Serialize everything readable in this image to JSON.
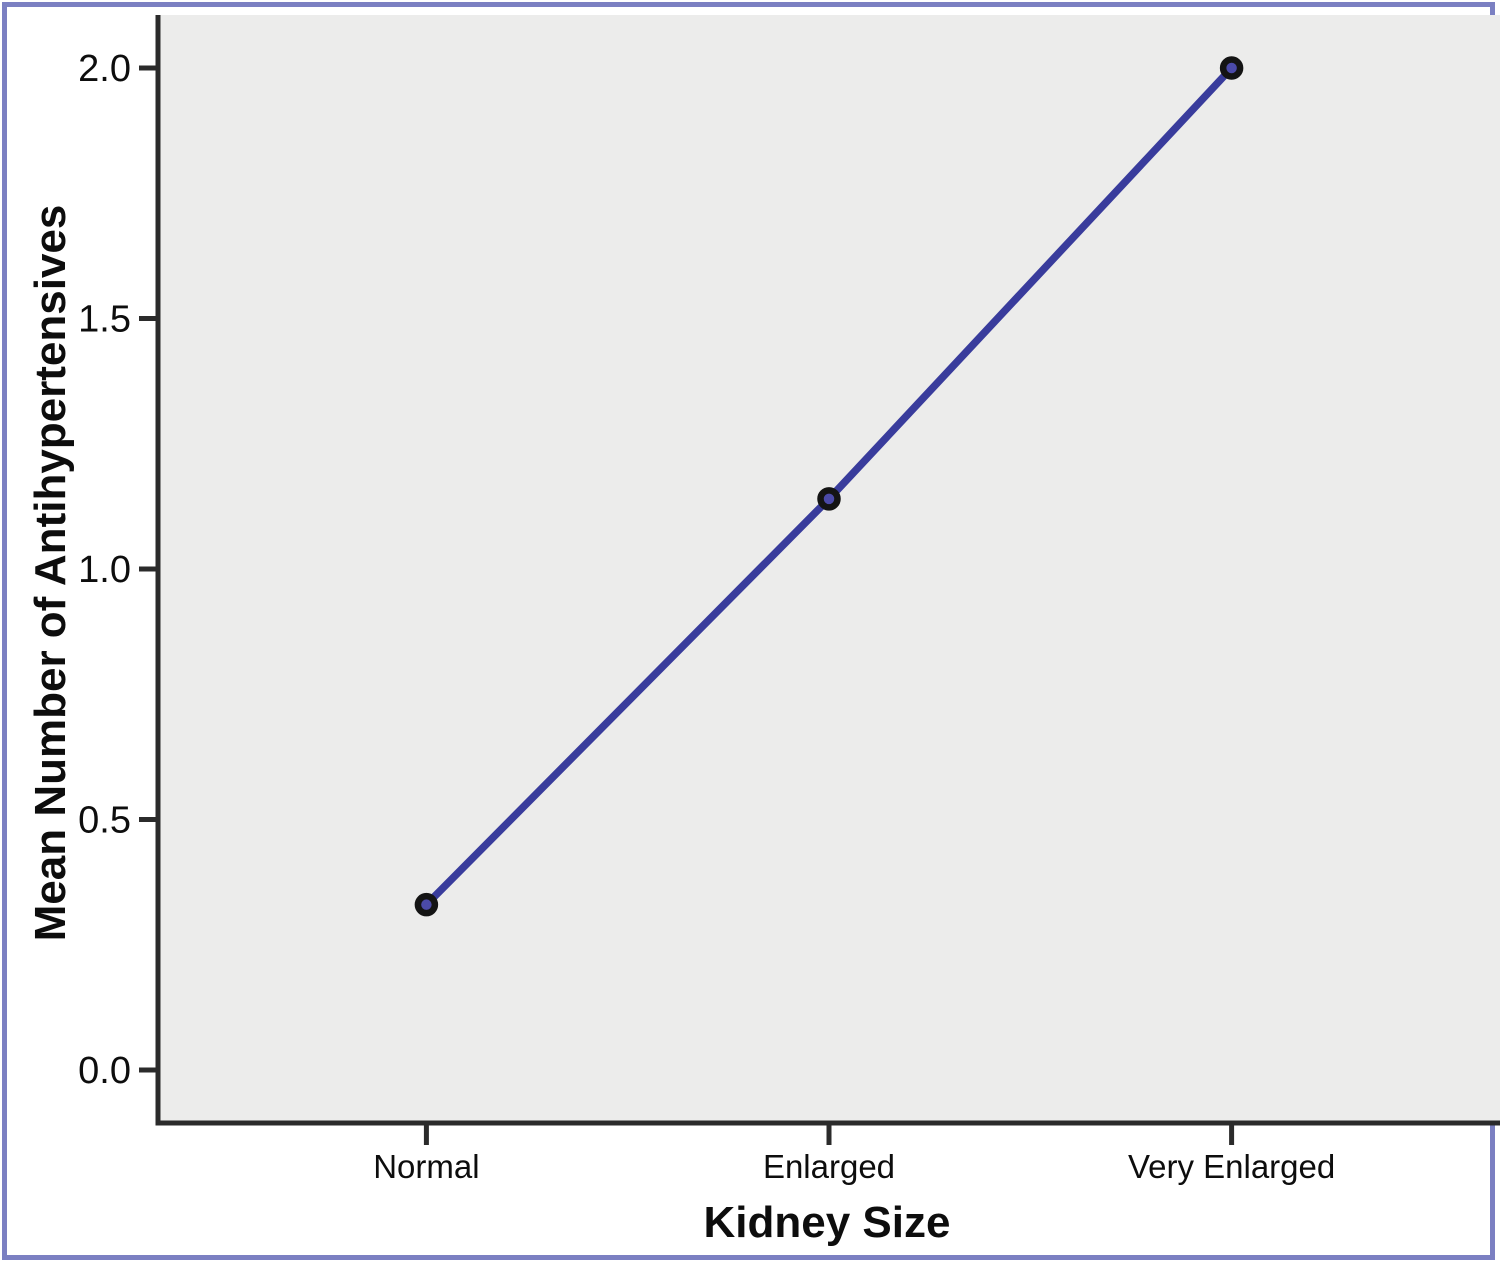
{
  "chart_data": {
    "type": "line",
    "title": "",
    "categories": [
      "Normal",
      "Enlarged",
      "Very Enlarged"
    ],
    "series": [
      {
        "name": "Mean Number of Antihypertensives",
        "values": [
          0.33,
          1.14,
          2.0
        ]
      }
    ],
    "xlabel": "Kidney Size",
    "ylabel": "Mean Number of Antihypertensives",
    "ylim": [
      0.0,
      2.0
    ],
    "yticks": [
      {
        "value": 0.0,
        "label": "0.0"
      },
      {
        "value": 0.5,
        "label": "0.5"
      },
      {
        "value": 1.0,
        "label": "1.0"
      },
      {
        "value": 1.5,
        "label": "1.5"
      },
      {
        "value": 2.0,
        "label": "2.0"
      }
    ],
    "grid": false,
    "legend_position": "none",
    "marker": "circle"
  },
  "colors": {
    "frame_border": "#7b80c2",
    "plot_background": "#ececeb",
    "outer_background": "#ffffff",
    "axis_line": "#2b2b2b",
    "tick_text": "#0d0d0d",
    "series_line": "#393c9c",
    "marker_fill": "#4b4aa8",
    "marker_stroke": "#141414"
  }
}
